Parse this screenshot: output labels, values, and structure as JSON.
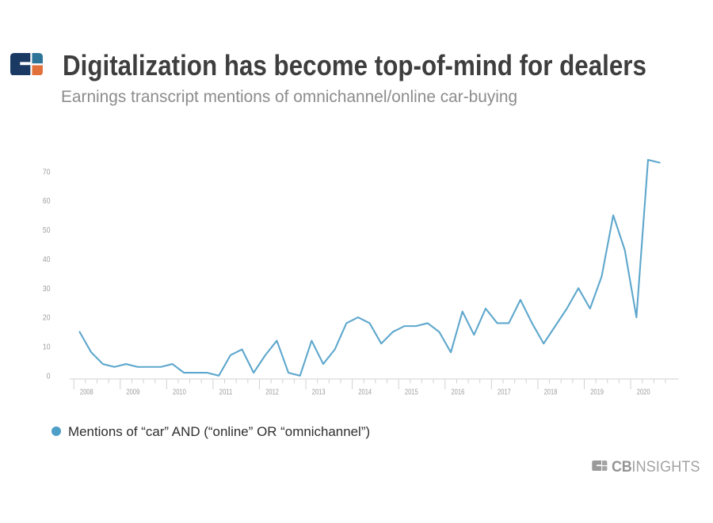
{
  "header": {
    "title": "Digitalization has become top-of-mind for dealers",
    "subtitle": "Earnings transcript mentions of omnichannel/online car-buying",
    "logo_icon": "cb-insights-logo-mark"
  },
  "legend": {
    "marker_icon": "legend-dot",
    "label": "Mentions of “car” AND (“online” OR “omnichannel”)"
  },
  "footer": {
    "logo_icon": "cb-insights-logo-mark-gray",
    "brand_bold": "CB",
    "brand_light": "INSIGHTS"
  },
  "colors": {
    "line": "#5ea7cc",
    "legend_dot": "#4d9fc8",
    "title_text": "#3e3e3e",
    "subtitle_text": "#8c8c8c",
    "axis": "#d2d2d2",
    "axis_label": "#9d9d9d",
    "logo_navy": "#1a3a64",
    "logo_blue": "#2e7499",
    "logo_orange": "#e2703a"
  },
  "chart_data": {
    "type": "line",
    "title": "Digitalization has become top-of-mind for dealers",
    "subtitle": "Earnings transcript mentions of omnichannel/online car-buying",
    "series_name": "Mentions of “car” AND (“online” OR “omnichannel”)",
    "x": [
      "Q4 2007",
      "Q1 2008",
      "Q2 2008",
      "Q3 2008",
      "Q4 2008",
      "Q1 2009",
      "Q2 2009",
      "Q3 2009",
      "Q4 2009",
      "Q1 2010",
      "Q2 2010",
      "Q3 2010",
      "Q4 2010",
      "Q1 2011",
      "Q2 2011",
      "Q3 2011",
      "Q4 2011",
      "Q1 2012",
      "Q2 2012",
      "Q3 2012",
      "Q4 2012",
      "Q1 2013",
      "Q2 2013",
      "Q3 2013",
      "Q4 2013",
      "Q1 2014",
      "Q2 2014",
      "Q3 2014",
      "Q4 2014",
      "Q1 2015",
      "Q2 2015",
      "Q3 2015",
      "Q4 2015",
      "Q1 2016",
      "Q2 2016",
      "Q3 2016",
      "Q4 2016",
      "Q1 2017",
      "Q2 2017",
      "Q3 2017",
      "Q4 2017",
      "Q1 2018",
      "Q2 2018",
      "Q3 2018",
      "Q4 2018",
      "Q1 2019",
      "Q2 2019",
      "Q3 2019",
      "Q4 2019",
      "Q1 2020",
      "Q2 2020"
    ],
    "values": [
      15,
      8,
      4,
      3,
      4,
      3,
      3,
      3,
      4,
      1,
      1,
      1,
      0,
      7,
      9,
      1,
      7,
      12,
      1,
      0,
      12,
      4,
      9,
      18,
      20,
      18,
      11,
      15,
      17,
      17,
      18,
      15,
      8,
      22,
      14,
      23,
      18,
      18,
      26,
      18,
      11,
      17,
      23,
      30,
      23,
      34,
      55,
      43,
      20,
      74,
      73
    ],
    "xlabel": "",
    "ylabel": "",
    "yticks": [
      0,
      10,
      20,
      30,
      40,
      50,
      60,
      70
    ],
    "ylim": [
      0,
      78
    ],
    "year_labels": [
      "2008",
      "2009",
      "2010",
      "2011",
      "2012",
      "2013",
      "2014",
      "2015",
      "2016",
      "2017",
      "2018",
      "2019",
      "2020"
    ],
    "grid": false,
    "legend_position": "bottom-left"
  }
}
